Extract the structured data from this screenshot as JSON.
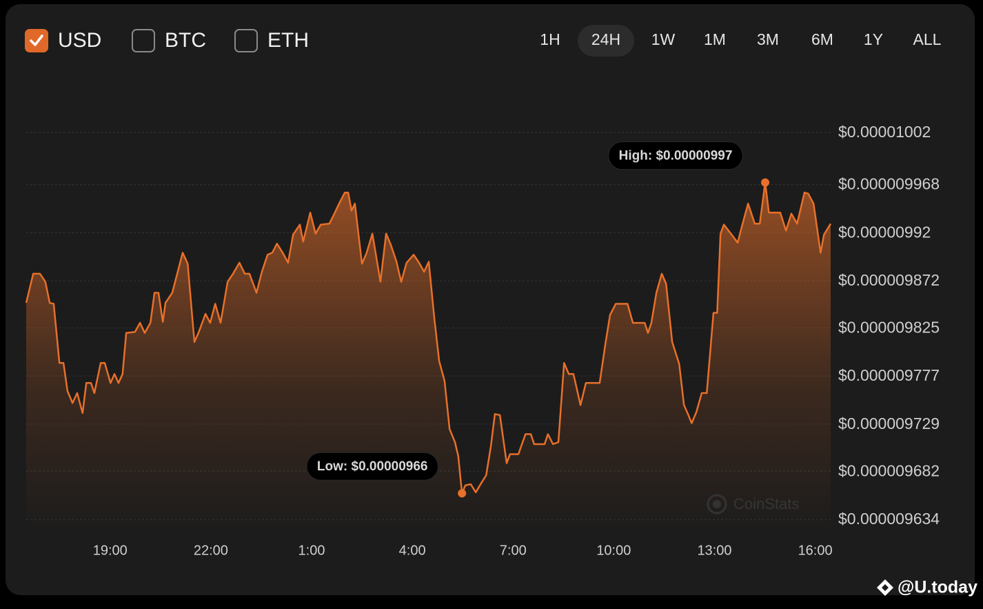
{
  "ui": {
    "currencies": [
      {
        "label": "USD",
        "checked": true
      },
      {
        "label": "BTC",
        "checked": false
      },
      {
        "label": "ETH",
        "checked": false
      }
    ],
    "ranges": [
      "1H",
      "24H",
      "1W",
      "1M",
      "3M",
      "6M",
      "1Y",
      "ALL"
    ],
    "selected_range": "24H",
    "watermark": "CoinStats",
    "credit": "@U.today"
  },
  "chart_data": {
    "type": "area",
    "color": "#e8702a",
    "grid": true,
    "xlim": [
      16.5,
      40.46
    ],
    "xticks": [
      {
        "value": 19,
        "label": "19:00"
      },
      {
        "value": 22,
        "label": "22:00"
      },
      {
        "value": 25,
        "label": "1:00"
      },
      {
        "value": 28,
        "label": "4:00"
      },
      {
        "value": 31,
        "label": "7:00"
      },
      {
        "value": 34,
        "label": "10:00"
      },
      {
        "value": 37,
        "label": "13:00"
      },
      {
        "value": 40,
        "label": "16:00"
      }
    ],
    "ylim": [
      9.634e-06,
      1.002e-05
    ],
    "yticks": [
      {
        "value": 1.002e-05,
        "label": "$0.00001002"
      },
      {
        "value": 9.968e-06,
        "label": "$0.000009968"
      },
      {
        "value": 9.92e-06,
        "label": "$0.00000992"
      },
      {
        "value": 9.872e-06,
        "label": "$0.000009872"
      },
      {
        "value": 9.825e-06,
        "label": "$0.000009825"
      },
      {
        "value": 9.777e-06,
        "label": "$0.000009777"
      },
      {
        "value": 9.729e-06,
        "label": "$0.000009729"
      },
      {
        "value": 9.682e-06,
        "label": "$0.000009682"
      },
      {
        "value": 9.634e-06,
        "label": "$0.000009634"
      }
    ],
    "x": [
      16.5,
      16.71,
      16.91,
      17.07,
      17.2,
      17.32,
      17.49,
      17.61,
      17.73,
      17.88,
      18.02,
      18.18,
      18.29,
      18.43,
      18.53,
      18.72,
      18.84,
      19.01,
      19.13,
      19.25,
      19.37,
      19.48,
      19.74,
      19.89,
      20.03,
      20.2,
      20.32,
      20.44,
      20.57,
      20.65,
      20.85,
      21.16,
      21.31,
      21.51,
      21.63,
      21.84,
      21.98,
      22.13,
      22.29,
      22.5,
      22.66,
      22.85,
      23.01,
      23.15,
      23.36,
      23.52,
      23.69,
      23.83,
      23.97,
      24.14,
      24.3,
      24.45,
      24.65,
      24.75,
      24.96,
      25.12,
      25.27,
      25.53,
      25.68,
      25.82,
      25.99,
      26.09,
      26.19,
      26.29,
      26.5,
      26.64,
      26.81,
      27.05,
      27.22,
      27.36,
      27.53,
      27.67,
      27.83,
      28.04,
      28.2,
      28.35,
      28.49,
      28.66,
      28.8,
      28.96,
      29.11,
      29.27,
      29.37,
      29.48,
      29.58,
      29.74,
      29.89,
      30.05,
      30.2,
      30.34,
      30.46,
      30.61,
      30.81,
      30.91,
      31.16,
      31.37,
      31.53,
      31.63,
      31.94,
      32.04,
      32.19,
      32.35,
      32.52,
      32.66,
      32.8,
      33.01,
      33.17,
      33.58,
      33.75,
      33.89,
      34.06,
      34.41,
      34.57,
      34.92,
      35.02,
      35.12,
      35.27,
      35.43,
      35.56,
      35.74,
      35.95,
      36.09,
      36.21,
      36.32,
      36.46,
      36.62,
      36.77,
      36.97,
      37.08,
      37.18,
      37.28,
      37.49,
      37.69,
      37.83,
      38,
      38.2,
      38.35,
      38.51,
      38.62,
      38.82,
      38.96,
      39.13,
      39.29,
      39.46,
      39.68,
      39.79,
      39.95,
      40.16,
      40.26,
      40.46
    ],
    "values": [
      9.85e-06,
      9.879e-06,
      9.879e-06,
      9.871e-06,
      9.85e-06,
      9.849e-06,
      9.79e-06,
      9.79e-06,
      9.762e-06,
      9.75e-06,
      9.76e-06,
      9.74e-06,
      9.77e-06,
      9.77e-06,
      9.76e-06,
      9.79e-06,
      9.79e-06,
      9.77e-06,
      9.779e-06,
      9.77e-06,
      9.779e-06,
      9.82e-06,
      9.821e-06,
      9.83e-06,
      9.82e-06,
      9.83e-06,
      9.86e-06,
      9.86e-06,
      9.831e-06,
      9.85e-06,
      9.86e-06,
      9.9e-06,
      9.889e-06,
      9.811e-06,
      9.82e-06,
      9.839e-06,
      9.83e-06,
      9.849e-06,
      9.83e-06,
      9.871e-06,
      9.879e-06,
      9.89e-06,
      9.879e-06,
      9.879e-06,
      9.86e-06,
      9.881e-06,
      9.898e-06,
      9.9e-06,
      9.909e-06,
      9.9e-06,
      9.89e-06,
      9.918e-06,
      9.928e-06,
      9.911e-06,
      9.94e-06,
      9.919e-06,
      9.928e-06,
      9.929e-06,
      9.939e-06,
      9.949e-06,
      9.96e-06,
      9.96e-06,
      9.942e-06,
      9.949e-06,
      9.889e-06,
      9.9e-06,
      9.919e-06,
      9.871e-06,
      9.919e-06,
      9.908e-06,
      9.891e-06,
      9.871e-06,
      9.89e-06,
      9.898e-06,
      9.89e-06,
      9.881e-06,
      9.891e-06,
      9.833e-06,
      9.792e-06,
      9.772e-06,
      9.724e-06,
      9.711e-06,
      9.697e-06,
      9.66e-06,
      9.668e-06,
      9.669e-06,
      9.661e-06,
      9.67e-06,
      9.678e-06,
      9.707e-06,
      9.739e-06,
      9.738e-06,
      9.69e-06,
      9.699e-06,
      9.699e-06,
      9.719e-06,
      9.719e-06,
      9.709e-06,
      9.709e-06,
      9.719e-06,
      9.709e-06,
      9.711e-06,
      9.79e-06,
      9.779e-06,
      9.779e-06,
      9.748e-06,
      9.77e-06,
      9.77e-06,
      9.809e-06,
      9.838e-06,
      9.849e-06,
      9.849e-06,
      9.83e-06,
      9.83e-06,
      9.82e-06,
      9.83e-06,
      9.86e-06,
      9.879e-06,
      9.869e-06,
      9.811e-06,
      9.789e-06,
      9.748e-06,
      9.739e-06,
      9.73e-06,
      9.741e-06,
      9.76e-06,
      9.76e-06,
      9.84e-06,
      9.84e-06,
      9.919e-06,
      9.928e-06,
      9.919e-06,
      9.91e-06,
      9.928e-06,
      9.949e-06,
      9.929e-06,
      9.929e-06,
      9.97e-06,
      9.94e-06,
      9.94e-06,
      9.94e-06,
      9.922e-06,
      9.939e-06,
      9.929e-06,
      9.96e-06,
      9.959e-06,
      9.949e-06,
      9.9e-06,
      9.918e-06,
      9.929e-06
    ],
    "annotations": [
      {
        "label": "High: $0.00000997",
        "x": 38.51,
        "value": 9.97e-06
      },
      {
        "label": "Low: $0.00000966",
        "x": 29.48,
        "value": 9.66e-06
      }
    ]
  }
}
